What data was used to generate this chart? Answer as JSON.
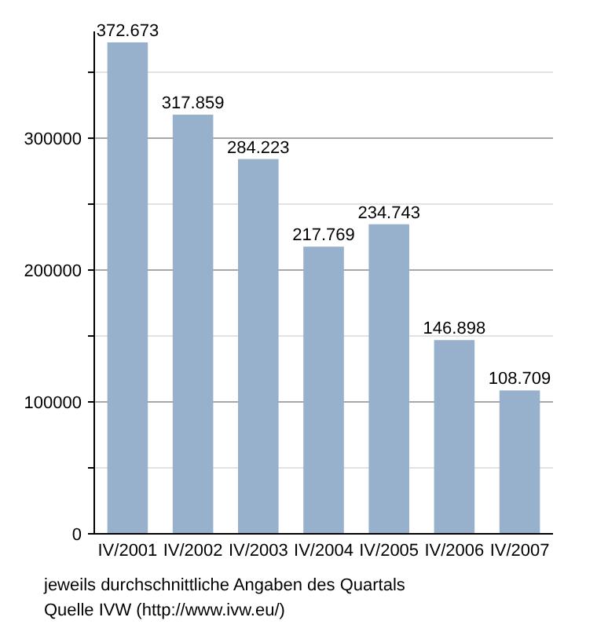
{
  "chart_data": {
    "type": "bar",
    "categories": [
      "IV/2001",
      "IV/2002",
      "IV/2003",
      "IV/2004",
      "IV/2005",
      "IV/2006",
      "IV/2007"
    ],
    "values": [
      372673,
      317859,
      284223,
      217769,
      234743,
      146898,
      108709
    ],
    "value_labels": [
      "372.673",
      "317.859",
      "284.223",
      "217.769",
      "234.743",
      "146.898",
      "108.709"
    ],
    "color": "#97b1cc",
    "ylim": [
      0,
      381000
    ],
    "yticks": [
      0,
      {
        "value": 50000,
        "label": null
      },
      100000,
      {
        "value": 150000,
        "label": null
      },
      200000,
      {
        "value": 250000,
        "label": null
      },
      300000,
      {
        "value": 350000,
        "label": null
      }
    ],
    "grid": true,
    "annotations": [
      "jeweils durchschnittliche Angaben des Quartals",
      "Quelle IVW (http://www.ivw.eu/)"
    ]
  }
}
